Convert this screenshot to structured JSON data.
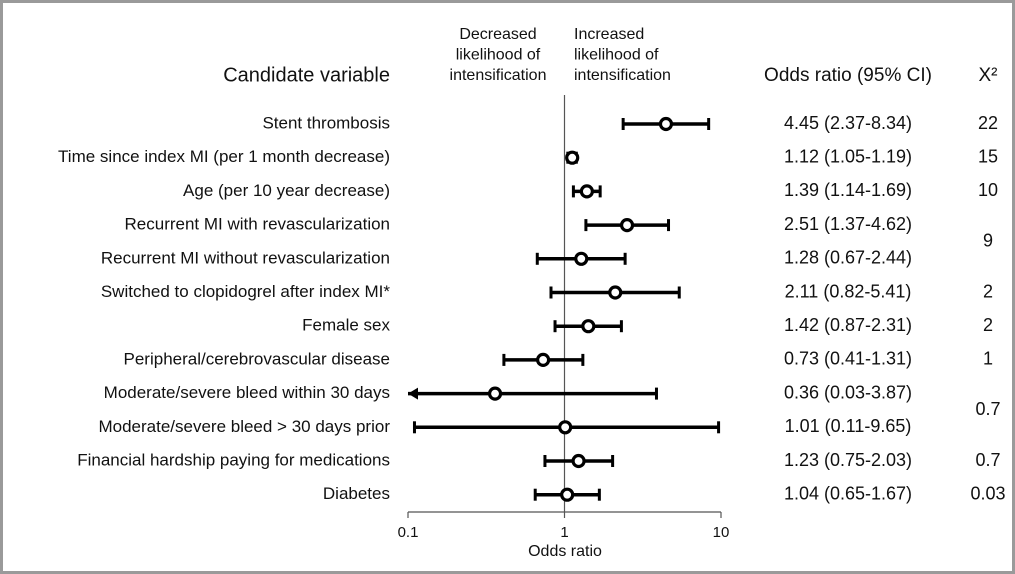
{
  "chart_data": {
    "type": "forest",
    "category_header": "Candidate variable",
    "left_header": [
      "Decreased",
      "likelihood of",
      "intensification"
    ],
    "right_header": [
      "Increased",
      "likelihood of",
      "intensification"
    ],
    "value_header": "Odds ratio (95% CI)",
    "chi2_header": "Χ²",
    "xlabel": "Odds ratio",
    "xscale": "log",
    "xlim": [
      0.1,
      10
    ],
    "xticks": [
      0.1,
      1,
      10
    ],
    "reference": 1,
    "color": "#000000",
    "categories": [
      "Stent thrombosis",
      "Time since index MI (per 1 month decrease)",
      "Age (per 10 year decrease)",
      "Recurrent MI with revascularization",
      "Recurrent MI without revascularization",
      "Switched to clopidogrel after index MI*",
      "Female sex",
      "Peripheral/cerebrovascular disease",
      "Moderate/severe bleed within 30 days",
      "Moderate/severe bleed > 30 days prior",
      "Financial hardship paying for medications",
      "Diabetes"
    ],
    "values": [
      4.45,
      1.12,
      1.39,
      2.51,
      1.28,
      2.11,
      1.42,
      0.73,
      0.36,
      1.01,
      1.23,
      1.04
    ],
    "lower": [
      2.37,
      1.05,
      1.14,
      1.37,
      0.67,
      0.82,
      0.87,
      0.41,
      0.03,
      0.11,
      0.75,
      0.65
    ],
    "upper": [
      8.34,
      1.19,
      1.69,
      4.62,
      2.44,
      5.41,
      2.31,
      1.31,
      3.87,
      9.65,
      2.03,
      1.67
    ],
    "value_labels": [
      "4.45 (2.37-8.34)",
      "1.12 (1.05-1.19)",
      "1.39 (1.14-1.69)",
      "2.51 (1.37-4.62)",
      "1.28 (0.67-2.44)",
      "2.11 (0.82-5.41)",
      "1.42 (0.87-2.31)",
      "0.73 (0.41-1.31)",
      "0.36 (0.03-3.87)",
      "1.01 (0.11-9.65)",
      "1.23 (0.75-2.03)",
      "1.04 (0.65-1.67)"
    ],
    "chi2": [
      22,
      15,
      10,
      9,
      null,
      2,
      2,
      1,
      0.7,
      null,
      0.7,
      0.03
    ]
  }
}
